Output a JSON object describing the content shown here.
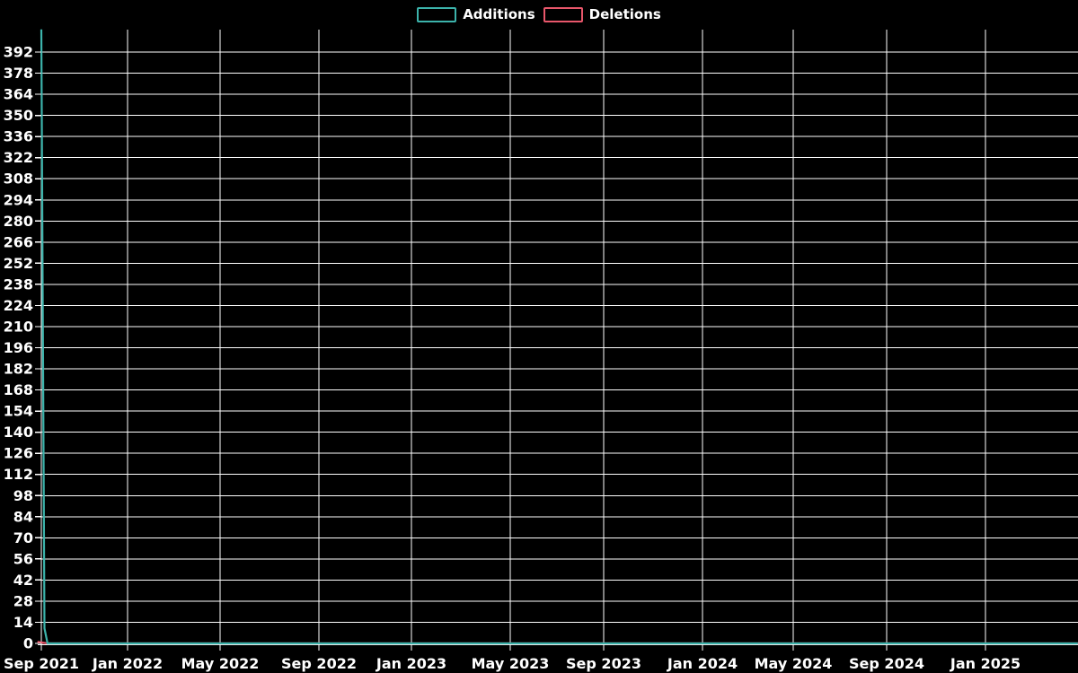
{
  "legend": {
    "entries": [
      {
        "label": "Additions",
        "color": "#3cb3ab"
      },
      {
        "label": "Deletions",
        "color": "#e9576b"
      }
    ]
  },
  "chart_data": {
    "type": "line",
    "title": "",
    "xlabel": "",
    "ylabel": "",
    "background_color": "#000000",
    "grid": true,
    "grid_color": "#ffffff",
    "axis_color": "#ffffff",
    "text_color": "#ffffff",
    "legend_position": "top-center",
    "ylim": [
      0,
      407
    ],
    "y_ticks": [
      0,
      14,
      28,
      42,
      56,
      70,
      84,
      98,
      112,
      126,
      140,
      154,
      168,
      182,
      196,
      210,
      224,
      238,
      252,
      266,
      280,
      294,
      308,
      322,
      336,
      350,
      364,
      378,
      392
    ],
    "x_ticks": [
      {
        "label": "Sep 2021",
        "date": "2021-09-01"
      },
      {
        "label": "Jan 2022",
        "date": "2022-01-01"
      },
      {
        "label": "May 2022",
        "date": "2022-05-01"
      },
      {
        "label": "Sep 2022",
        "date": "2022-09-01"
      },
      {
        "label": "Jan 2023",
        "date": "2023-01-01"
      },
      {
        "label": "May 2023",
        "date": "2023-05-01"
      },
      {
        "label": "Sep 2023",
        "date": "2023-09-01"
      },
      {
        "label": "Jan 2024",
        "date": "2024-01-01"
      },
      {
        "label": "May 2024",
        "date": "2024-05-01"
      },
      {
        "label": "Sep 2024",
        "date": "2024-09-01"
      },
      {
        "label": "Jan 2025",
        "date": "2025-01-01"
      }
    ],
    "x_range": [
      "2021-08-27",
      "2025-04-30"
    ],
    "series": [
      {
        "name": "Additions",
        "color": "#3cb3ab",
        "points": [
          [
            "2021-09-01",
            407
          ],
          [
            "2021-09-05",
            10
          ],
          [
            "2021-09-09",
            0
          ],
          [
            "2025-04-30",
            0
          ]
        ]
      },
      {
        "name": "Deletions",
        "color": "#e9576b",
        "points": [
          [
            "2021-08-27",
            1
          ],
          [
            "2021-09-09",
            0
          ],
          [
            "2025-04-30",
            0
          ]
        ]
      }
    ]
  }
}
